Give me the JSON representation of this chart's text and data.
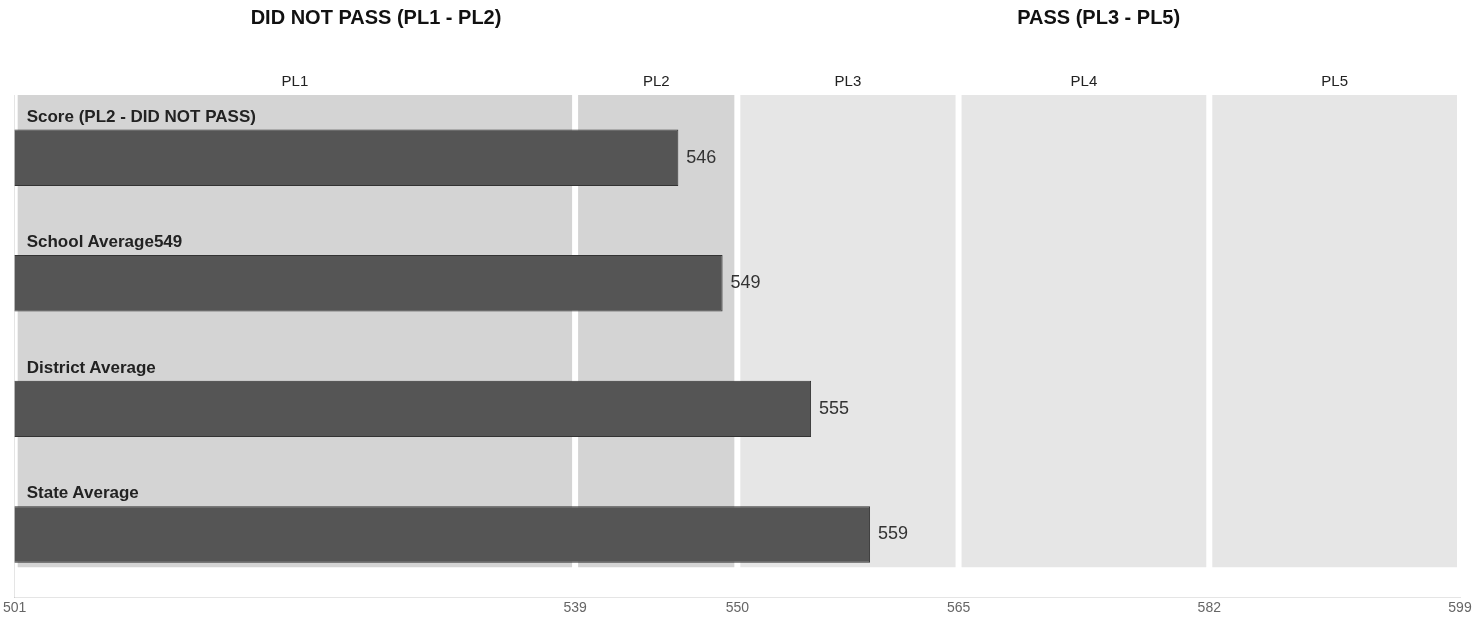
{
  "chart_data": {
    "type": "bar",
    "orientation": "horizontal",
    "categories": [
      "Score (PL2 - DID NOT PASS)",
      "School Average549",
      "District Average",
      "State Average"
    ],
    "values": [
      546,
      549,
      555,
      559
    ],
    "color": "#555555",
    "data_labels": true,
    "xlim": [
      501,
      599
    ],
    "xticks": [
      501,
      539,
      550,
      565,
      582,
      599
    ],
    "grid": false,
    "legend": false,
    "bands": [
      {
        "axis": "x",
        "from": 501,
        "to": 539,
        "label": "PL1",
        "color": "#d4d4d4"
      },
      {
        "axis": "x",
        "from": 539,
        "to": 550,
        "label": "PL2",
        "color": "#d4d4d4"
      },
      {
        "axis": "x",
        "from": 550,
        "to": 565,
        "label": "PL3",
        "color": "#e6e6e6"
      },
      {
        "axis": "x",
        "from": 565,
        "to": 582,
        "label": "PL4",
        "color": "#e6e6e6"
      },
      {
        "axis": "x",
        "from": 582,
        "to": 599,
        "label": "PL5",
        "color": "#e6e6e6"
      }
    ],
    "annotations": [
      "DID NOT PASS (PL1 - PL2)",
      "PASS (PL3 - PL5)"
    ]
  }
}
